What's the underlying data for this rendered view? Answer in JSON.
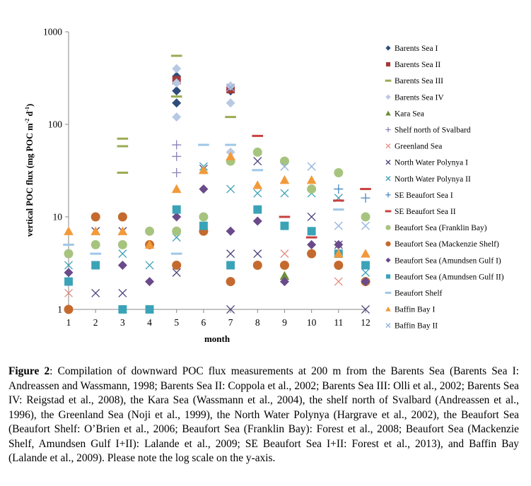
{
  "chart_data": {
    "type": "scatter",
    "xlabel": "month",
    "ylabel": "vertical POC flux (mg POC m",
    "ylabel_sup1": "-2",
    "ylabel_mid": " d",
    "ylabel_sup2": "-1",
    "ylabel_end": ")",
    "y_scale": "log",
    "ylim": [
      1,
      1000
    ],
    "xlim": [
      1,
      12
    ],
    "x_ticks": [
      "1",
      "2",
      "3",
      "4",
      "5",
      "6",
      "7",
      "8",
      "9",
      "10",
      "11",
      "12"
    ],
    "y_ticks": [
      "1",
      "10",
      "100",
      "1000"
    ],
    "legend_position": "right",
    "series": [
      {
        "name": "Barents Sea I",
        "marker": "diamond",
        "color": "#2e4d7b",
        "points": [
          [
            5,
            330
          ],
          [
            5,
            230
          ],
          [
            5,
            170
          ],
          [
            7,
            230
          ]
        ]
      },
      {
        "name": "Barents Sea II",
        "marker": "square",
        "color": "#a33a3a",
        "points": [
          [
            5,
            300
          ],
          [
            7,
            240
          ]
        ]
      },
      {
        "name": "Barents Sea III",
        "marker": "dash",
        "color": "#9aab52",
        "points": [
          [
            3,
            70
          ],
          [
            3,
            58
          ],
          [
            3,
            30
          ],
          [
            5,
            550
          ],
          [
            5,
            200
          ],
          [
            7,
            120
          ]
        ]
      },
      {
        "name": "Barents Sea IV",
        "marker": "diamond",
        "color": "#b9c9e3",
        "points": [
          [
            5,
            400
          ],
          [
            5,
            280
          ],
          [
            5,
            120
          ],
          [
            7,
            260
          ],
          [
            7,
            170
          ],
          [
            7,
            50
          ]
        ]
      },
      {
        "name": "Kara Sea",
        "marker": "triangle",
        "color": "#6b8e3a",
        "points": [
          [
            9,
            2.3
          ]
        ]
      },
      {
        "name": "Shelf north of Svalbard",
        "marker": "plus",
        "color": "#8a7fb8",
        "points": [
          [
            5,
            60
          ],
          [
            5,
            45
          ],
          [
            5,
            30
          ]
        ]
      },
      {
        "name": "Greenland Sea",
        "marker": "x",
        "color": "#e58a7e",
        "points": [
          [
            1,
            1.5
          ],
          [
            9,
            4
          ],
          [
            11,
            2
          ]
        ]
      },
      {
        "name": "North Water Polynya I",
        "marker": "x",
        "color": "#4a3f7a",
        "points": [
          [
            2,
            1.5
          ],
          [
            2,
            7
          ],
          [
            3,
            1.5
          ],
          [
            3,
            7
          ],
          [
            5,
            2.5
          ],
          [
            6,
            33
          ],
          [
            7,
            4
          ],
          [
            7,
            1
          ],
          [
            8,
            40
          ],
          [
            8,
            4
          ],
          [
            10,
            10
          ],
          [
            11,
            5
          ],
          [
            12,
            1
          ]
        ]
      },
      {
        "name": "North Water Polynya II",
        "marker": "x",
        "color": "#3aa0b5",
        "points": [
          [
            1,
            3
          ],
          [
            3,
            4
          ],
          [
            4,
            3
          ],
          [
            5,
            6
          ],
          [
            6,
            35
          ],
          [
            7,
            20
          ],
          [
            8,
            18
          ],
          [
            9,
            18
          ],
          [
            10,
            18
          ],
          [
            11,
            16
          ],
          [
            12,
            2.5
          ]
        ]
      },
      {
        "name": "SE Beaufort Sea I",
        "marker": "plus",
        "color": "#4a86c0",
        "points": [
          [
            11,
            20
          ],
          [
            12,
            16
          ]
        ]
      },
      {
        "name": "SE Beaufort Sea II",
        "marker": "dash",
        "color": "#c84040",
        "points": [
          [
            8,
            75
          ],
          [
            9,
            10
          ],
          [
            10,
            6
          ],
          [
            11,
            15
          ],
          [
            12,
            20
          ]
        ]
      },
      {
        "name": "Beaufort Sea (Franklin Bay)",
        "marker": "circle",
        "color": "#a7c47f",
        "points": [
          [
            1,
            4
          ],
          [
            2,
            5
          ],
          [
            3,
            5
          ],
          [
            4,
            7
          ],
          [
            5,
            7
          ],
          [
            6,
            10
          ],
          [
            7,
            40
          ],
          [
            8,
            50
          ],
          [
            9,
            40
          ],
          [
            10,
            20
          ],
          [
            11,
            30
          ],
          [
            12,
            10
          ]
        ]
      },
      {
        "name": "Beaufort Sea (Mackenzie Shelf)",
        "marker": "circle",
        "color": "#c46a2e",
        "points": [
          [
            1,
            1
          ],
          [
            2,
            10
          ],
          [
            3,
            10
          ],
          [
            4,
            5
          ],
          [
            5,
            3
          ],
          [
            6,
            7
          ],
          [
            7,
            2
          ],
          [
            8,
            3
          ],
          [
            9,
            3
          ],
          [
            10,
            4
          ],
          [
            11,
            3
          ],
          [
            12,
            2
          ]
        ]
      },
      {
        "name": "Beaufort Sea (Amundsen Gulf I)",
        "marker": "diamond",
        "color": "#6a4a8a",
        "points": [
          [
            1,
            2.5
          ],
          [
            3,
            3
          ],
          [
            4,
            2
          ],
          [
            5,
            10
          ],
          [
            6,
            20
          ],
          [
            7,
            7
          ],
          [
            8,
            9
          ],
          [
            9,
            2
          ],
          [
            10,
            5
          ],
          [
            11,
            5
          ],
          [
            12,
            2
          ]
        ]
      },
      {
        "name": "Beaufort Sea (Amundsen Gulf II)",
        "marker": "square",
        "color": "#3aa3b8",
        "points": [
          [
            1,
            2
          ],
          [
            2,
            3
          ],
          [
            3,
            1
          ],
          [
            4,
            1
          ],
          [
            5,
            12
          ],
          [
            6,
            8
          ],
          [
            7,
            3
          ],
          [
            8,
            12
          ],
          [
            9,
            8
          ],
          [
            10,
            7
          ],
          [
            11,
            4
          ],
          [
            12,
            3
          ]
        ]
      },
      {
        "name": "Beaufort Shelf",
        "marker": "dash",
        "color": "#9fc7e6",
        "points": [
          [
            1,
            5
          ],
          [
            2,
            4
          ],
          [
            5,
            4
          ],
          [
            6,
            60
          ],
          [
            7,
            60
          ],
          [
            8,
            32
          ],
          [
            11,
            12
          ]
        ]
      },
      {
        "name": "Baffin Bay I",
        "marker": "triangle",
        "color": "#f29a3a",
        "points": [
          [
            1,
            7
          ],
          [
            2,
            7
          ],
          [
            3,
            7
          ],
          [
            4,
            5
          ],
          [
            5,
            20
          ],
          [
            6,
            32
          ],
          [
            7,
            45
          ],
          [
            8,
            22
          ],
          [
            9,
            25
          ],
          [
            10,
            25
          ],
          [
            11,
            4
          ],
          [
            12,
            4
          ]
        ]
      },
      {
        "name": "Baffin Bay II",
        "marker": "x",
        "color": "#8fb0dc",
        "points": [
          [
            7,
            250
          ],
          [
            9,
            35
          ],
          [
            10,
            35
          ],
          [
            11,
            8
          ],
          [
            12,
            8
          ]
        ]
      }
    ]
  },
  "caption": {
    "label": "Figure 2",
    "text": ": Compilation of downward POC flux measurements at 200 m from the Barents Sea (Barents Sea I: Andreassen and Wassmann, 1998; Barents Sea II: Coppola et al., 2002; Barents Sea III: Olli et al., 2002; Barents Sea IV: Reigstad et al., 2008), the Kara Sea (Wassmann et al., 2004), the shelf north of Svalbard (Andreassen et al., 1996), the Greenland Sea (Noji et al., 1999), the North Water Polynya (Hargrave et al., 2002), the Beaufort Sea (Beaufort Shelf: O’Brien et al., 2006; Beaufort Sea (Franklin Bay): Forest et al., 2008; Beaufort Sea (Mackenzie Shelf, Amundsen Gulf I+II): Lalande et al., 2009; SE Beaufort Sea I+II: Forest et al., 2013), and Baffin Bay (Lalande et al., 2009). Please note the log scale on the y-axis."
  }
}
